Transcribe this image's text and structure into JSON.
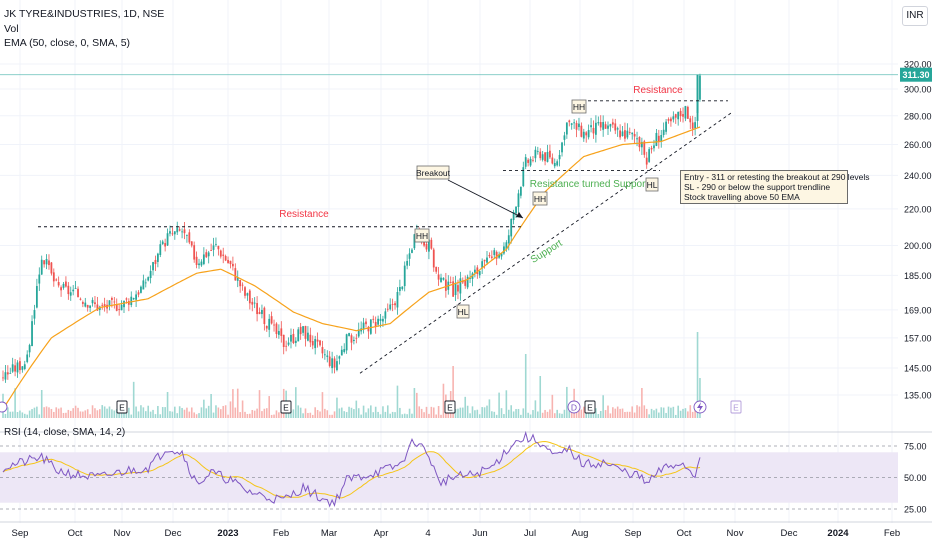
{
  "header": {
    "symbol_line": "JK TYRE&INDUSTRIES, 1D, NSE",
    "vol_label": "Vol",
    "ema_label": "EMA (50, close, 0, SMA, 5)",
    "currency": "INR"
  },
  "price_badge": "311.30",
  "rsi_label": "RSI (14, close, SMA, 14, 2)",
  "annotations": {
    "resistance_left": "Resistance",
    "resistance_right": "Resistance",
    "resistance_turned_support": "Resistance turned Support",
    "support": "Support",
    "breakout": "Breakout",
    "hh1": "HH",
    "hh2": "HH",
    "hh3": "HH",
    "hl1": "HL",
    "hl2": "HL",
    "note_lines": [
      "Entry - 311 or retesting the breakout at 290 levels",
      "SL - 290 or below the support trendline",
      "Stock travelling above 50 EMA"
    ]
  },
  "event_markers": [
    "E",
    "E",
    "E",
    "D",
    "E",
    "E"
  ],
  "colors": {
    "up": "#26a69a",
    "down": "#ef5350",
    "ema": "#f7a21b",
    "rsi": "#7e57c2",
    "rsi_ma": "#f5c518",
    "rsi_band": "#ede7f6",
    "resistance_text": "#f23645",
    "support_text": "#4caf50",
    "price_line": "#26a69a"
  },
  "chart_data": {
    "type": "candlestick",
    "price_axis": {
      "ticks": [
        135.0,
        145.0,
        157.0,
        169.0,
        185.0,
        200.0,
        220.0,
        240.0,
        260.0,
        280.0,
        300.0,
        320.0
      ],
      "tick_labels": [
        "135.00",
        "145.00",
        "157.00",
        "169.00",
        "185.00",
        "200.00",
        "220.00",
        "240.00",
        "260.00",
        "280.00",
        "300.00",
        "320.00"
      ],
      "scale": "log",
      "last_price": 311.3
    },
    "rsi_axis": {
      "ticks": [
        25.0,
        50.0,
        75.0
      ],
      "tick_labels": [
        "25.00",
        "50.00",
        "75.00"
      ],
      "band": [
        30,
        70
      ]
    },
    "time_axis": [
      "Sep",
      "Oct",
      "Nov",
      "Dec",
      "2023",
      "Feb",
      "Mar",
      "Apr",
      "4",
      "Jun",
      "Jul",
      "Aug",
      "Sep",
      "Oct",
      "Nov",
      "Dec",
      "2024",
      "Feb"
    ],
    "resistance_level": 210,
    "breakout_level": 243,
    "recent_resistance_level": 291,
    "price_anchors": [
      [
        0,
        142
      ],
      [
        10,
        148
      ],
      [
        16,
        195
      ],
      [
        22,
        180
      ],
      [
        30,
        176
      ],
      [
        40,
        170
      ],
      [
        50,
        172
      ],
      [
        58,
        180
      ],
      [
        68,
        205
      ],
      [
        74,
        208
      ],
      [
        80,
        192
      ],
      [
        88,
        200
      ],
      [
        94,
        190
      ],
      [
        100,
        176
      ],
      [
        108,
        165
      ],
      [
        116,
        155
      ],
      [
        124,
        160
      ],
      [
        132,
        151
      ],
      [
        137,
        146
      ],
      [
        142,
        156
      ],
      [
        150,
        162
      ],
      [
        158,
        166
      ],
      [
        164,
        178
      ],
      [
        170,
        205
      ],
      [
        176,
        200
      ],
      [
        180,
        182
      ],
      [
        186,
        178
      ],
      [
        194,
        185
      ],
      [
        202,
        193
      ],
      [
        208,
        200
      ],
      [
        212,
        225
      ],
      [
        216,
        248
      ],
      [
        222,
        255
      ],
      [
        228,
        248
      ],
      [
        234,
        275
      ],
      [
        240,
        268
      ],
      [
        248,
        273
      ],
      [
        256,
        268
      ],
      [
        262,
        265
      ],
      [
        266,
        250
      ],
      [
        270,
        265
      ],
      [
        276,
        275
      ],
      [
        282,
        285
      ],
      [
        286,
        272
      ],
      [
        288,
        311.3
      ]
    ],
    "ema50_anchors": [
      [
        0,
        130
      ],
      [
        20,
        157
      ],
      [
        40,
        170
      ],
      [
        60,
        174
      ],
      [
        80,
        186
      ],
      [
        90,
        188
      ],
      [
        104,
        180
      ],
      [
        120,
        168
      ],
      [
        132,
        163
      ],
      [
        146,
        160
      ],
      [
        160,
        163
      ],
      [
        176,
        177
      ],
      [
        192,
        183
      ],
      [
        208,
        198
      ],
      [
        224,
        230
      ],
      [
        240,
        252
      ],
      [
        256,
        260
      ],
      [
        272,
        262
      ],
      [
        288,
        272
      ]
    ],
    "rsi_anchors": [
      [
        0,
        58
      ],
      [
        8,
        62
      ],
      [
        16,
        66
      ],
      [
        22,
        56
      ],
      [
        30,
        52
      ],
      [
        40,
        50
      ],
      [
        50,
        55
      ],
      [
        60,
        58
      ],
      [
        68,
        74
      ],
      [
        74,
        70
      ],
      [
        80,
        45
      ],
      [
        86,
        54
      ],
      [
        94,
        48
      ],
      [
        100,
        40
      ],
      [
        108,
        35
      ],
      [
        116,
        32
      ],
      [
        124,
        42
      ],
      [
        132,
        33
      ],
      [
        137,
        30
      ],
      [
        142,
        48
      ],
      [
        150,
        52
      ],
      [
        158,
        56
      ],
      [
        164,
        60
      ],
      [
        170,
        80
      ],
      [
        176,
        68
      ],
      [
        180,
        46
      ],
      [
        186,
        50
      ],
      [
        194,
        52
      ],
      [
        202,
        58
      ],
      [
        210,
        76
      ],
      [
        216,
        82
      ],
      [
        222,
        78
      ],
      [
        228,
        66
      ],
      [
        234,
        72
      ],
      [
        240,
        60
      ],
      [
        248,
        62
      ],
      [
        256,
        55
      ],
      [
        262,
        52
      ],
      [
        266,
        45
      ],
      [
        272,
        56
      ],
      [
        280,
        62
      ],
      [
        286,
        52
      ],
      [
        288,
        68
      ]
    ]
  }
}
